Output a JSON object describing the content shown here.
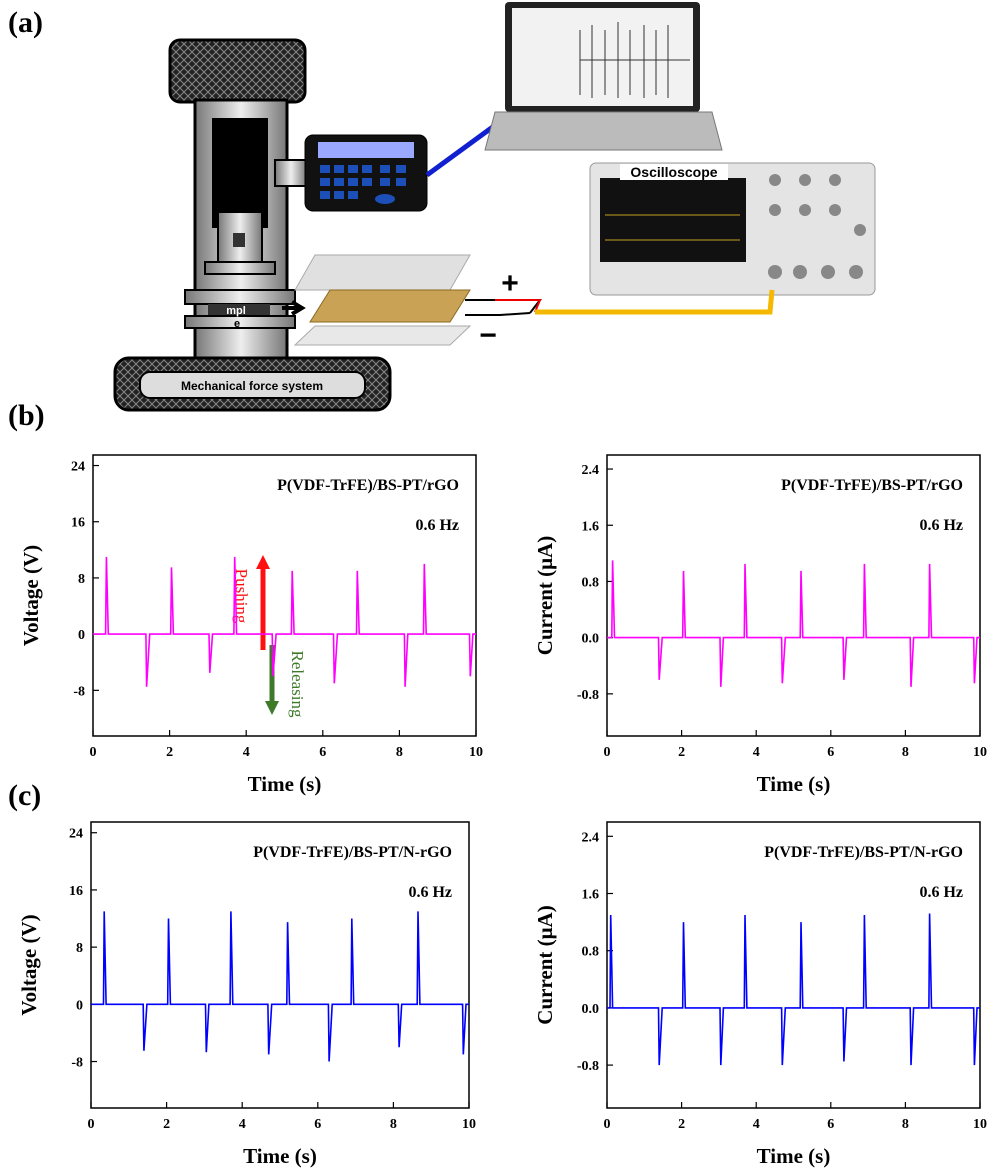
{
  "panel_labels": [
    "(a)",
    "(b)",
    "(c)"
  ],
  "diagram": {
    "plate_label": "mpl",
    "electrode_label": "e",
    "base_label": "Mechanical force system",
    "scope_label": "Oscilloscope",
    "plus": "+",
    "minus": "−"
  },
  "chart_data": [
    {
      "type": "line",
      "xlabel": "Time (s)",
      "ylabel": "Voltage (V)",
      "color": "#ff00ff",
      "annotations": [
        "P(VDF-TrFE)/BS-PT/rGO",
        "0.6 Hz"
      ],
      "arrows": [
        {
          "label": "Pushing",
          "color": "#ff1010"
        },
        {
          "label": "Releasing",
          "color": "#3f7a2a"
        }
      ],
      "xlim": [
        0,
        10
      ],
      "xticks": [
        0,
        2,
        4,
        6,
        8,
        10
      ],
      "ylim": [
        -14.5,
        25.5
      ],
      "yticks": [
        -8,
        0,
        8,
        16,
        24
      ],
      "x": [
        0,
        0.33,
        0.35,
        0.4,
        1.38,
        1.4,
        1.48,
        2.03,
        2.05,
        2.1,
        3.03,
        3.05,
        3.12,
        3.68,
        3.7,
        3.75,
        4.68,
        4.7,
        4.78,
        5.18,
        5.2,
        5.25,
        6.28,
        6.3,
        6.38,
        6.88,
        6.9,
        6.95,
        8.13,
        8.15,
        8.22,
        8.63,
        8.65,
        8.7,
        9.83,
        9.85,
        9.92,
        10
      ],
      "values": [
        0,
        0,
        11,
        0,
        0,
        -7.5,
        0,
        0,
        9.5,
        0,
        0,
        -5.5,
        0,
        0,
        11,
        0,
        0,
        -6,
        0,
        0,
        9,
        0,
        0,
        -7,
        0,
        0,
        9,
        0,
        0,
        -7.5,
        0,
        0,
        10,
        0,
        0,
        -6,
        0,
        0
      ]
    },
    {
      "type": "line",
      "xlabel": "Time (s)",
      "ylabel": "Current (μA)",
      "color": "#ff00ff",
      "annotations": [
        "P(VDF-TrFE)/BS-PT/rGO",
        "0.6 Hz"
      ],
      "xlim": [
        0,
        10
      ],
      "xticks": [
        0,
        2,
        4,
        6,
        8,
        10
      ],
      "ylim": [
        -1.4,
        2.6
      ],
      "yticks": [
        -0.8,
        {
          "value": 0,
          "label": "0.0"
        },
        0.8,
        1.6,
        2.4
      ],
      "x": [
        0,
        0.13,
        0.15,
        0.2,
        1.38,
        1.4,
        1.48,
        2.03,
        2.05,
        2.1,
        3.03,
        3.05,
        3.12,
        3.68,
        3.7,
        3.75,
        4.68,
        4.7,
        4.78,
        5.18,
        5.2,
        5.25,
        6.33,
        6.35,
        6.42,
        6.88,
        6.9,
        6.95,
        8.13,
        8.15,
        8.22,
        8.63,
        8.65,
        8.7,
        9.83,
        9.85,
        9.92,
        10
      ],
      "values": [
        0,
        0,
        1.1,
        0,
        0,
        -0.6,
        0,
        0,
        0.95,
        0,
        0,
        -0.7,
        0,
        0,
        1.05,
        0,
        0,
        -0.65,
        0,
        0,
        0.95,
        0,
        0,
        -0.6,
        0,
        0,
        1.05,
        0,
        0,
        -0.7,
        0,
        0,
        1.05,
        0,
        0,
        -0.65,
        0,
        0
      ]
    },
    {
      "type": "line",
      "xlabel": "Time (s)",
      "ylabel": "Voltage (V)",
      "color": "#0000ff",
      "annotations": [
        "P(VDF-TrFE)/BS-PT/N-rGO",
        "0.6 Hz"
      ],
      "xlim": [
        0,
        10
      ],
      "xticks": [
        0,
        2,
        4,
        6,
        8,
        10
      ],
      "ylim": [
        -14.5,
        25.5
      ],
      "yticks": [
        -8,
        0,
        8,
        16,
        24
      ],
      "x": [
        0,
        0.33,
        0.35,
        0.4,
        1.38,
        1.4,
        1.48,
        2.03,
        2.05,
        2.1,
        3.03,
        3.05,
        3.12,
        3.68,
        3.7,
        3.75,
        4.68,
        4.7,
        4.78,
        5.18,
        5.2,
        5.25,
        6.28,
        6.3,
        6.38,
        6.88,
        6.9,
        6.95,
        8.13,
        8.15,
        8.22,
        8.63,
        8.65,
        8.7,
        9.83,
        9.85,
        9.92,
        10
      ],
      "values": [
        0,
        0,
        13,
        0,
        0,
        -6.5,
        0,
        0,
        12,
        0,
        0,
        -6.7,
        0,
        0,
        13,
        0,
        0,
        -7,
        0,
        0,
        11.5,
        0,
        0,
        -8,
        0,
        0,
        12,
        0,
        0,
        -6,
        0,
        0,
        13,
        0,
        0,
        -7,
        0,
        0
      ]
    },
    {
      "type": "line",
      "xlabel": "Time (s)",
      "ylabel": "Current (μA)",
      "color": "#0000ff",
      "annotations": [
        "P(VDF-TrFE)/BS-PT/N-rGO",
        "0.6 Hz"
      ],
      "xlim": [
        0,
        10
      ],
      "xticks": [
        0,
        2,
        4,
        6,
        8,
        10
      ],
      "ylim": [
        -1.4,
        2.6
      ],
      "yticks": [
        -0.8,
        {
          "value": 0,
          "label": "0.0"
        },
        0.8,
        1.6,
        2.4
      ],
      "x": [
        0,
        0.08,
        0.1,
        0.15,
        1.38,
        1.4,
        1.48,
        2.03,
        2.05,
        2.1,
        3.03,
        3.05,
        3.12,
        3.68,
        3.7,
        3.75,
        4.68,
        4.7,
        4.78,
        5.18,
        5.2,
        5.25,
        6.33,
        6.35,
        6.42,
        6.88,
        6.9,
        6.95,
        8.13,
        8.15,
        8.22,
        8.63,
        8.65,
        8.7,
        9.83,
        9.85,
        9.92,
        10
      ],
      "values": [
        0,
        0,
        1.3,
        0,
        0,
        -0.8,
        0,
        0,
        1.2,
        0,
        0,
        -0.8,
        0,
        0,
        1.3,
        0,
        0,
        -0.8,
        0,
        0,
        1.2,
        0,
        0,
        -0.75,
        0,
        0,
        1.3,
        0,
        0,
        -0.8,
        0,
        0,
        1.32,
        0,
        0,
        -0.8,
        0,
        0
      ]
    }
  ]
}
